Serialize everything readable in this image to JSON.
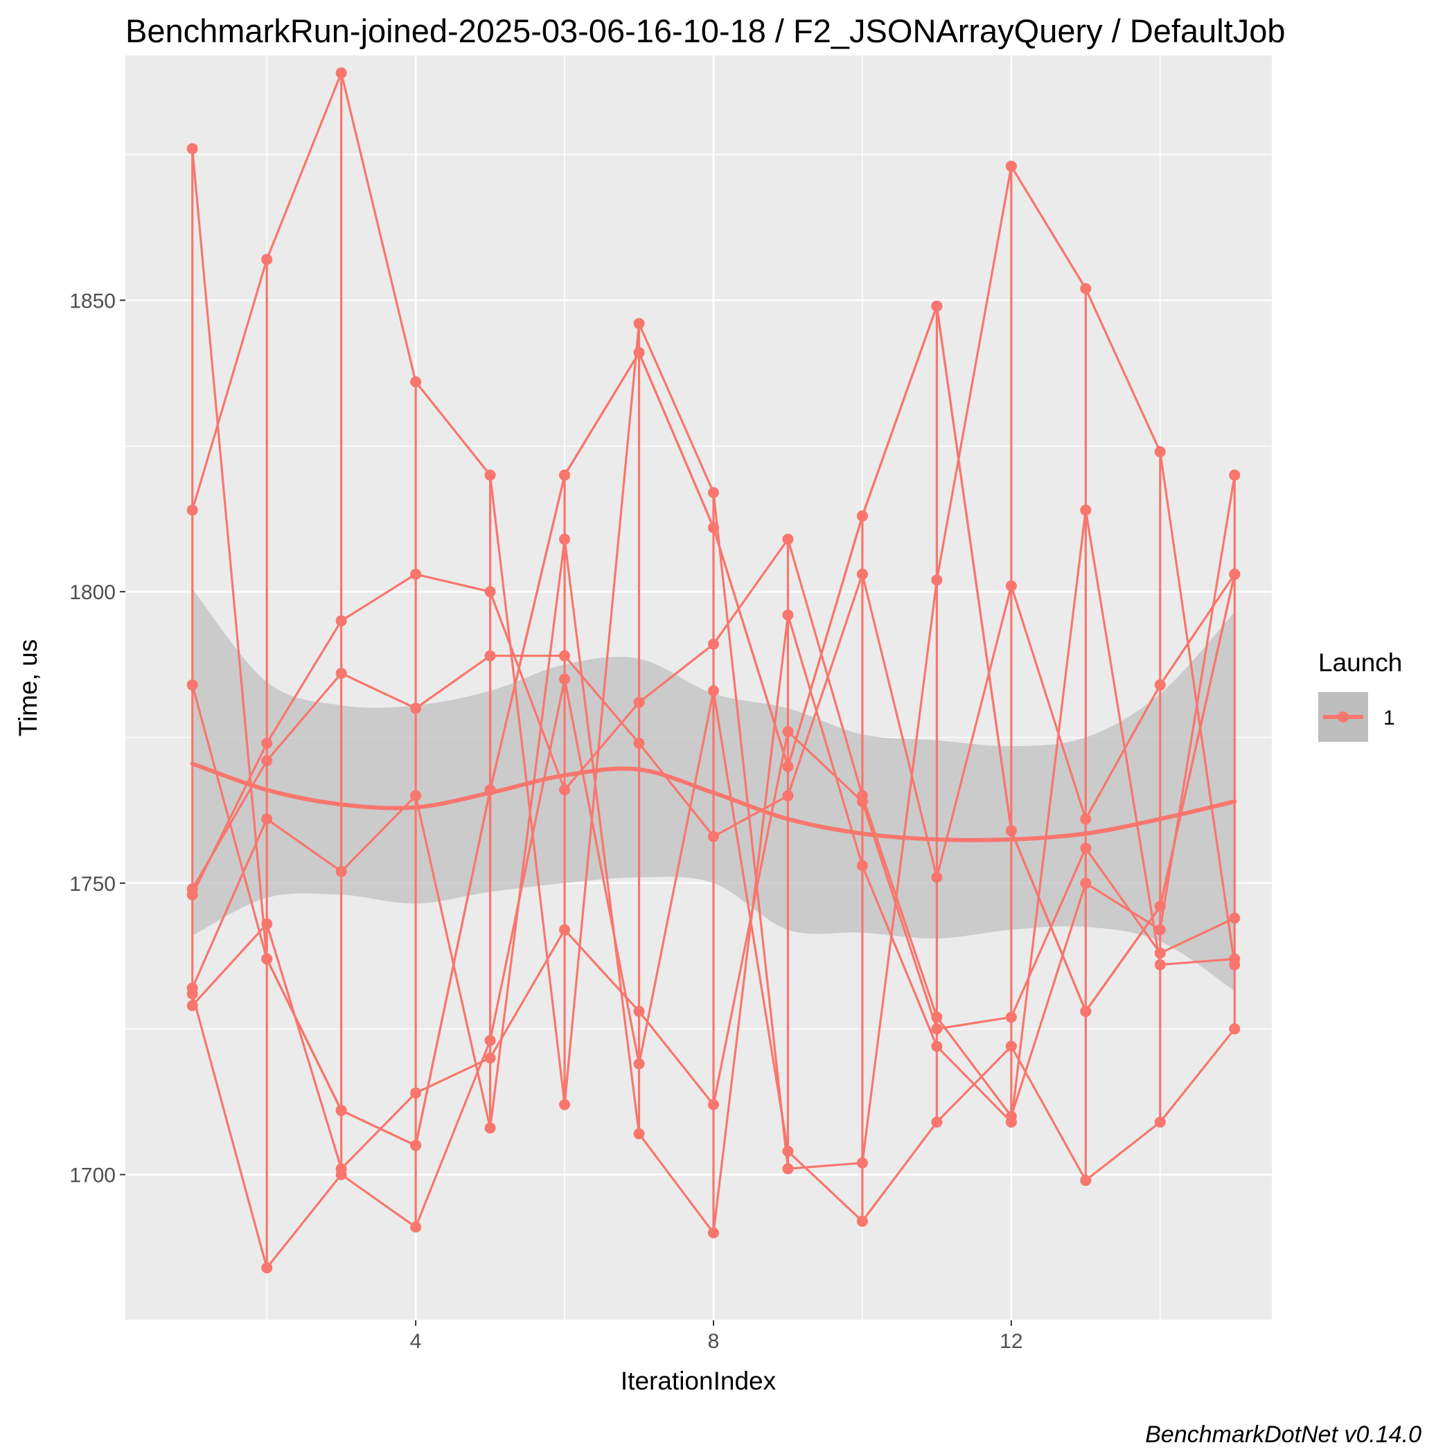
{
  "chart_data": {
    "type": "line",
    "title": "BenchmarkRun-joined-2025-03-06-16-10-18 / F2_JSONArrayQuery / DefaultJob",
    "xlabel": "IterationIndex",
    "ylabel": "Time, us",
    "caption": "BenchmarkDotNet v0.14.0",
    "xlim": [
      0.1,
      15.5
    ],
    "ylim": [
      1675,
      1892
    ],
    "xticks": [
      4,
      8,
      12
    ],
    "yticks": [
      1700,
      1750,
      1800,
      1850
    ],
    "grid": true,
    "legend": {
      "title": "Launch",
      "placement": "right",
      "entries": [
        "1"
      ]
    },
    "colors": {
      "series": "#f8766d",
      "ribbon": "#bebebe",
      "panel": "#ebebeb",
      "grid": "#ffffff"
    },
    "x": [
      1,
      2,
      3,
      4,
      5,
      6,
      7,
      8,
      9,
      10,
      11,
      12,
      13,
      14,
      15
    ],
    "series": [
      {
        "name": "1",
        "values": [
          1729,
          1743,
          1701,
          1714,
          1720,
          1742,
          1728,
          1712,
          1776,
          1764,
          1725,
          1727,
          1756,
          1738,
          1744
        ]
      },
      {
        "values": [
          1731,
          1684,
          1700,
          1691,
          1723,
          1785,
          1719,
          1783,
          1704,
          1692,
          1709,
          1722,
          1699,
          1709,
          1725
        ]
      },
      {
        "values": [
          1732,
          1761,
          1752,
          1765,
          1708,
          1809,
          1707,
          1690,
          1796,
          1753,
          1722,
          1709,
          1814,
          1736,
          1737
        ]
      },
      {
        "values": [
          1749,
          1771,
          1786,
          1780,
          1789,
          1789,
          1774,
          1758,
          1765,
          1803,
          1751,
          1801,
          1761,
          1784,
          1803
        ]
      },
      {
        "values": [
          1748,
          1774,
          1795,
          1803,
          1800,
          1766,
          1781,
          1791,
          1809,
          1765,
          1727,
          1710,
          1750,
          1742,
          1820
        ]
      },
      {
        "values": [
          1784,
          1737,
          1711,
          1705,
          1766,
          1820,
          1841,
          1811,
          1770,
          1813,
          1849,
          1759,
          1728,
          1746,
          1803
        ]
      },
      {
        "values": [
          1814,
          1857,
          1889,
          1836,
          1820,
          1712,
          1846,
          1817,
          1701,
          1702,
          1802,
          1873,
          1852,
          1824,
          1736
        ]
      },
      {
        "values": [
          1876,
          1737,
          1711,
          1705,
          1766,
          1820,
          1841,
          1811,
          1770,
          1813,
          1849,
          1759,
          1728,
          1746,
          1803
        ]
      }
    ],
    "smooth": {
      "x": [
        1,
        2,
        3,
        4,
        5,
        6,
        7,
        8,
        9,
        10,
        11,
        12,
        13,
        14,
        15
      ],
      "y": [
        1770.5,
        1766,
        1763.5,
        1763,
        1765.5,
        1768.5,
        1769.5,
        1765.5,
        1761,
        1758.5,
        1757.5,
        1757.5,
        1758.5,
        1761,
        1764
      ],
      "lower": [
        1741,
        1747.5,
        1748,
        1746.5,
        1748.5,
        1750,
        1751,
        1750,
        1742,
        1741.5,
        1740.5,
        1742,
        1742.5,
        1740,
        1731.5
      ],
      "upper": [
        1800.5,
        1784.5,
        1780.5,
        1780.5,
        1783,
        1787.5,
        1788.5,
        1782.5,
        1780,
        1775.5,
        1774.5,
        1773.5,
        1775,
        1782.5,
        1796.5
      ]
    }
  }
}
